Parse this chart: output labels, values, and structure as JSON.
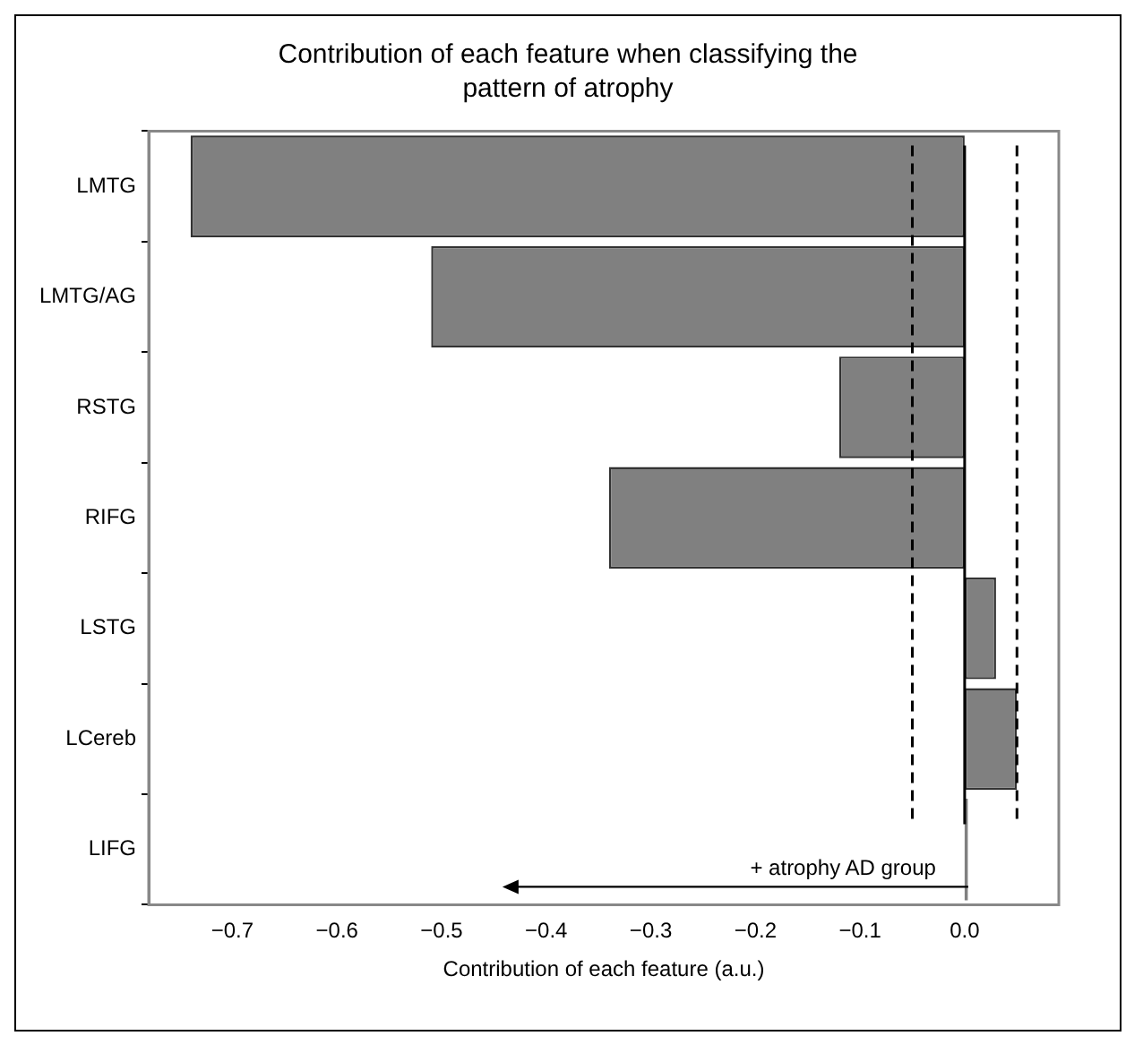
{
  "chart_data": {
    "type": "bar",
    "orientation": "horizontal",
    "title": "Contribution of each feature when classifying the pattern of atrophy",
    "xlabel": "Contribution of each feature (a.u.)",
    "categories": [
      "LMTG",
      "LMTG/AG",
      "RSTG",
      "RIFG",
      "LSTG",
      "LCereb",
      "LIFG"
    ],
    "values": [
      -0.74,
      -0.51,
      -0.12,
      -0.34,
      0.03,
      0.05,
      0.003
    ],
    "color": "#808080",
    "xlim": [
      -0.78,
      0.09
    ],
    "xticks": [
      {
        "value": -0.7,
        "label": "−0.7"
      },
      {
        "value": -0.6,
        "label": "−0.6"
      },
      {
        "value": -0.5,
        "label": "−0.5"
      },
      {
        "value": -0.4,
        "label": "−0.4"
      },
      {
        "value": -0.3,
        "label": "−0.3"
      },
      {
        "value": -0.2,
        "label": "−0.2"
      },
      {
        "value": -0.1,
        "label": "−0.1"
      },
      {
        "value": 0,
        "label": "0.0"
      }
    ],
    "ref_lines": [
      {
        "axis": "x",
        "value": -0.05,
        "line_style": "dashed",
        "color": "#000000"
      },
      {
        "axis": "x",
        "value": 0.05,
        "line_style": "dashed",
        "color": "#000000"
      },
      {
        "axis": "x",
        "value": 0,
        "line_style": "solid",
        "color": "#000000"
      }
    ],
    "annotations": [
      "+ atrophy AD group"
    ],
    "grid": false,
    "legend": false
  }
}
